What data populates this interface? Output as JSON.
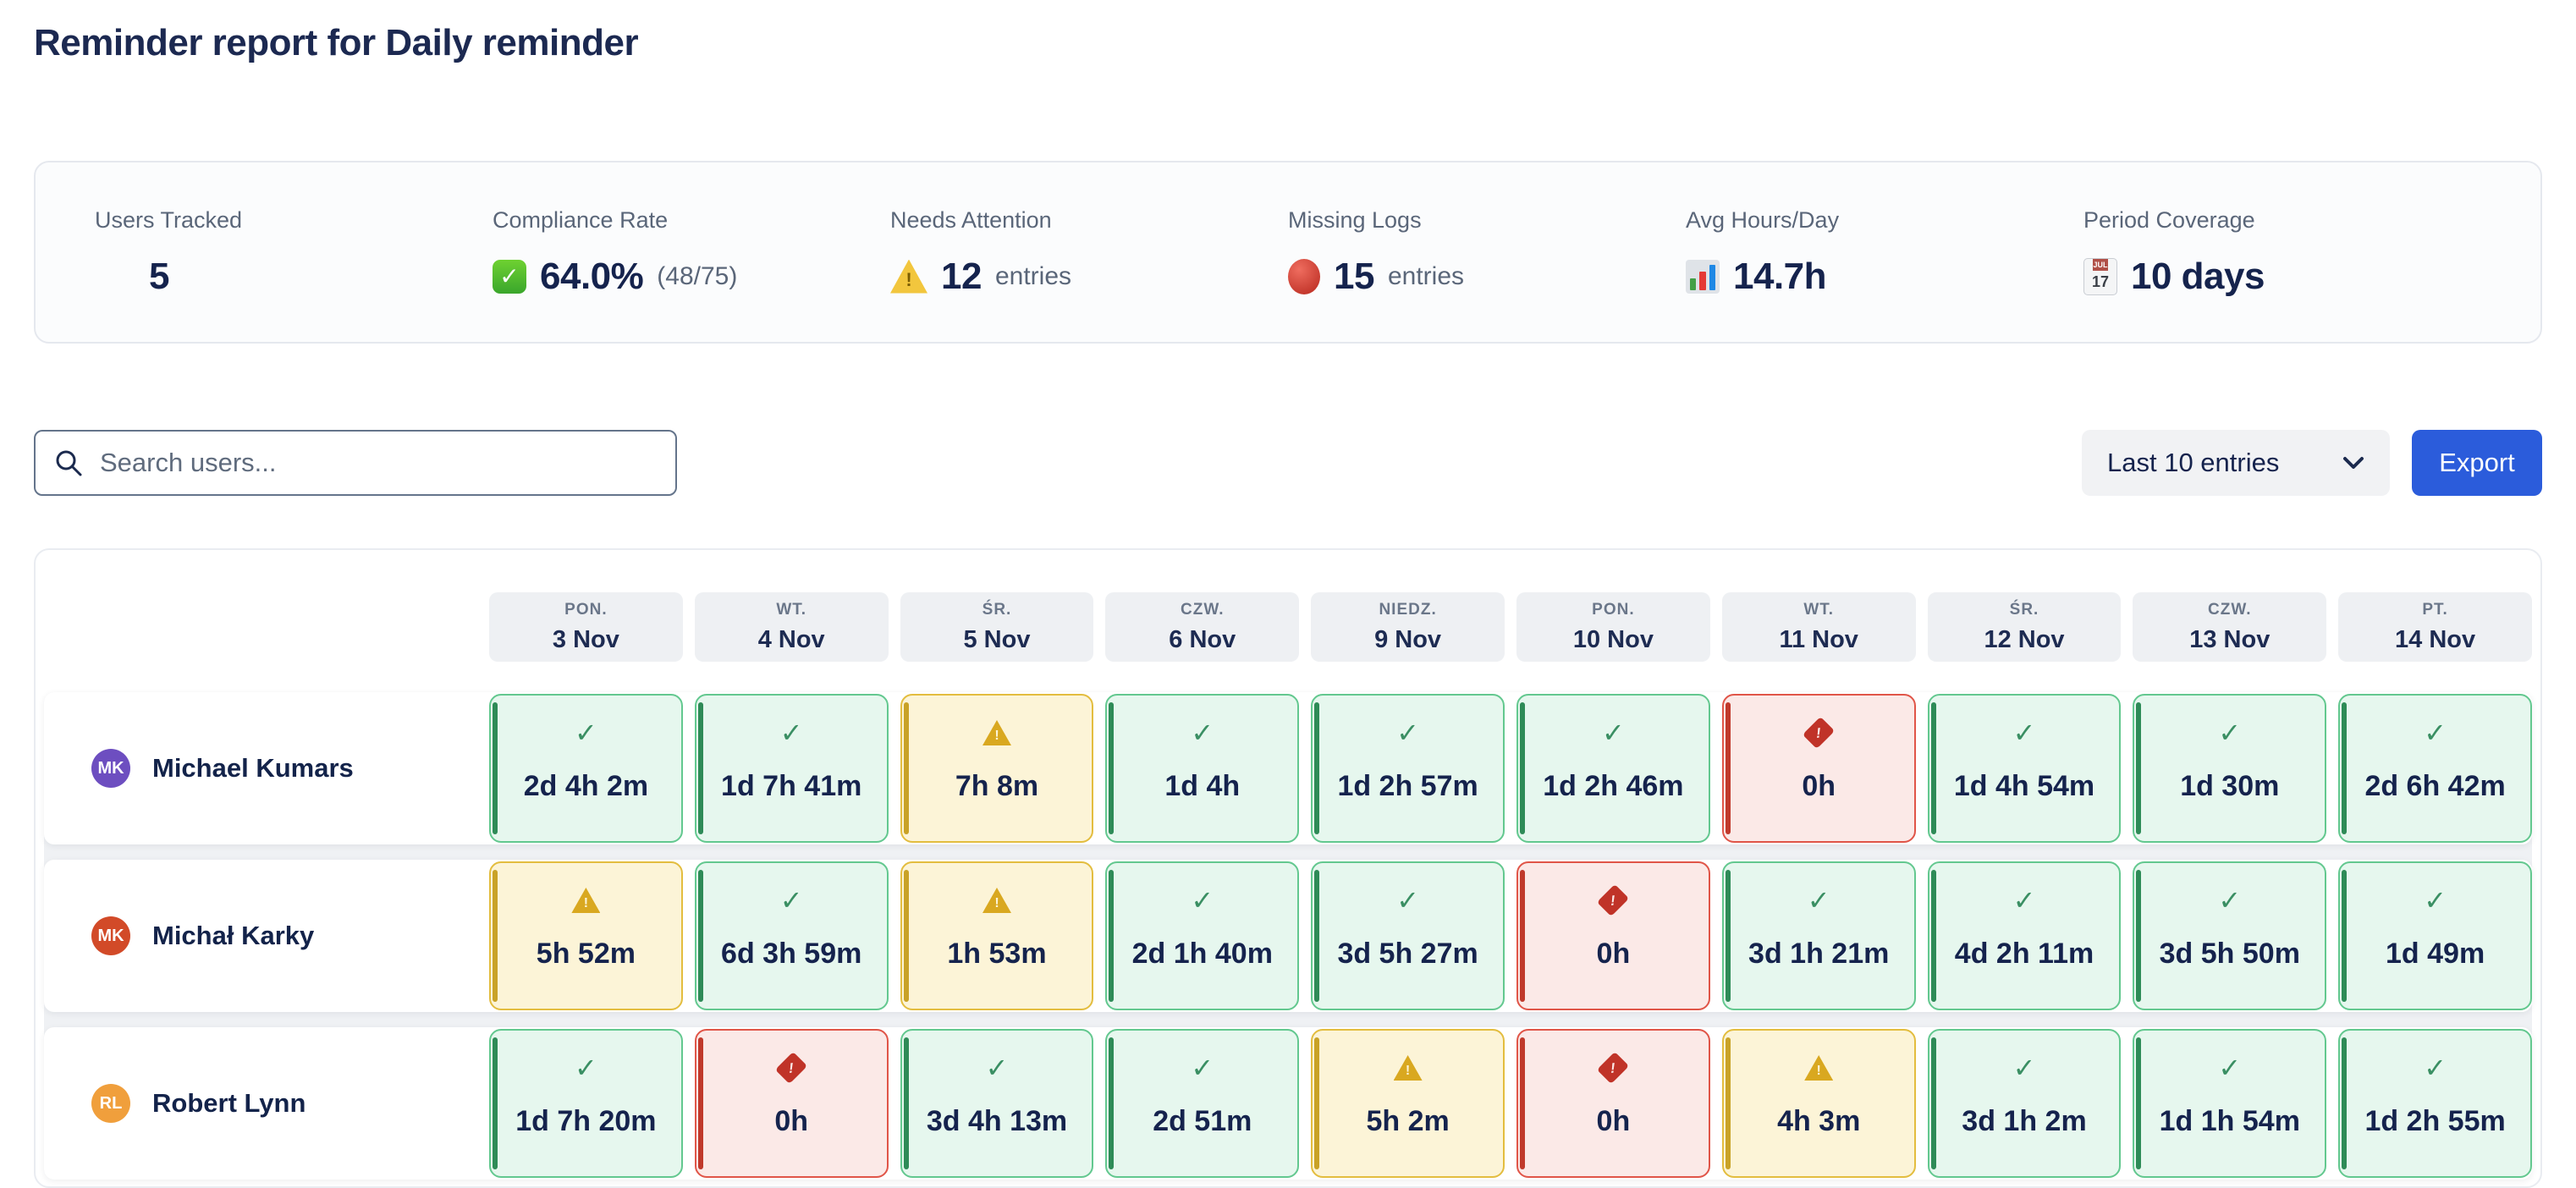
{
  "title": "Reminder report for Daily reminder",
  "stats": [
    {
      "icon": "users-icon",
      "label": "Users Tracked",
      "value": "5",
      "suffix": ""
    },
    {
      "icon": "check-box-icon",
      "label": "Compliance Rate",
      "value": "64.0%",
      "suffix": "(48/75)"
    },
    {
      "icon": "warning-icon",
      "label": "Needs Attention",
      "value": "12",
      "suffix": "entries"
    },
    {
      "icon": "red-circle-icon",
      "label": "Missing Logs",
      "value": "15",
      "suffix": "entries"
    },
    {
      "icon": "bar-chart-icon",
      "label": "Avg Hours/Day",
      "value": "14.7h",
      "suffix": ""
    },
    {
      "icon": "calendar-icon",
      "label": "Period Coverage",
      "value": "10 days",
      "suffix": ""
    }
  ],
  "calendar_icon": {
    "month": "JUL",
    "day": "17"
  },
  "toolbar": {
    "search_placeholder": "Search users...",
    "filter_value": "Last 10 entries",
    "export_label": "Export"
  },
  "colors": {
    "accent_blue": "#2b5cdb",
    "status_ok_border": "#63c88f",
    "status_warn_border": "#e3bd3f",
    "status_missing_border": "#e05548"
  },
  "table": {
    "columns": [
      {
        "day": "PON.",
        "date": "3 Nov"
      },
      {
        "day": "WT.",
        "date": "4 Nov"
      },
      {
        "day": "ŚR.",
        "date": "5 Nov"
      },
      {
        "day": "CZW.",
        "date": "6 Nov"
      },
      {
        "day": "NIEDZ.",
        "date": "9 Nov"
      },
      {
        "day": "PON.",
        "date": "10 Nov"
      },
      {
        "day": "WT.",
        "date": "11 Nov"
      },
      {
        "day": "ŚR.",
        "date": "12 Nov"
      },
      {
        "day": "CZW.",
        "date": "13 Nov"
      },
      {
        "day": "PT.",
        "date": "14 Nov"
      }
    ],
    "rows": [
      {
        "initials": "MK",
        "name": "Michael Kumars",
        "avatar_color": "#6d4ec0",
        "cells": [
          {
            "status": "ok",
            "value": "2d 4h 2m"
          },
          {
            "status": "ok",
            "value": "1d 7h 41m"
          },
          {
            "status": "warn",
            "value": "7h 8m"
          },
          {
            "status": "ok",
            "value": "1d 4h"
          },
          {
            "status": "ok",
            "value": "1d 2h 57m"
          },
          {
            "status": "ok",
            "value": "1d 2h 46m"
          },
          {
            "status": "missing",
            "value": "0h"
          },
          {
            "status": "ok",
            "value": "1d 4h 54m"
          },
          {
            "status": "ok",
            "value": "1d 30m"
          },
          {
            "status": "ok",
            "value": "2d 6h 42m"
          }
        ]
      },
      {
        "initials": "MK",
        "name": "Michał Karky",
        "avatar_color": "#d24a28",
        "cells": [
          {
            "status": "warn",
            "value": "5h 52m"
          },
          {
            "status": "ok",
            "value": "6d 3h 59m"
          },
          {
            "status": "warn",
            "value": "1h 53m"
          },
          {
            "status": "ok",
            "value": "2d 1h 40m"
          },
          {
            "status": "ok",
            "value": "3d 5h 27m"
          },
          {
            "status": "missing",
            "value": "0h"
          },
          {
            "status": "ok",
            "value": "3d 1h 21m"
          },
          {
            "status": "ok",
            "value": "4d 2h 11m"
          },
          {
            "status": "ok",
            "value": "3d 5h 50m"
          },
          {
            "status": "ok",
            "value": "1d 49m"
          }
        ]
      },
      {
        "initials": "RL",
        "name": "Robert Lynn",
        "avatar_color": "#f09f3c",
        "cells": [
          {
            "status": "ok",
            "value": "1d 7h 20m"
          },
          {
            "status": "missing",
            "value": "0h"
          },
          {
            "status": "ok",
            "value": "3d 4h 13m"
          },
          {
            "status": "ok",
            "value": "2d 51m"
          },
          {
            "status": "warn",
            "value": "5h 2m"
          },
          {
            "status": "missing",
            "value": "0h"
          },
          {
            "status": "warn",
            "value": "4h 3m"
          },
          {
            "status": "ok",
            "value": "3d 1h 2m"
          },
          {
            "status": "ok",
            "value": "1d 1h 54m"
          },
          {
            "status": "ok",
            "value": "1d 2h 55m"
          }
        ]
      }
    ]
  }
}
